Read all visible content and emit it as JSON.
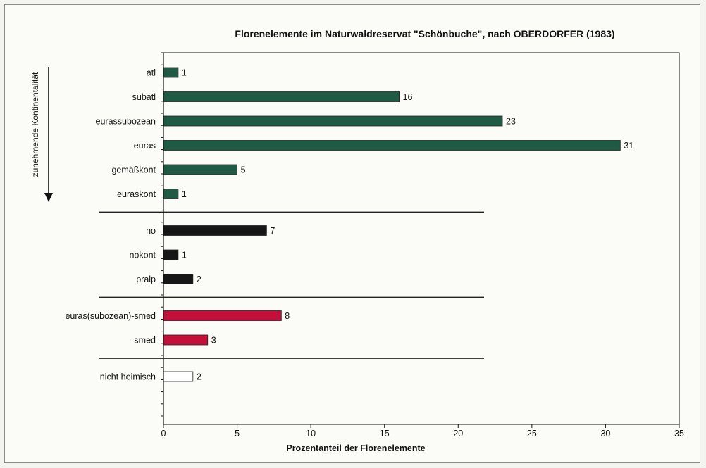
{
  "chart_data": {
    "type": "bar",
    "orientation": "horizontal",
    "title": "Florenelemente im Naturwaldreservat \"Schönbuche\", nach OBERDORFER (1983)",
    "xlabel": "Prozentanteil der Florenelemente",
    "ylabel": "zunehmende Kontinentalität",
    "xlim": [
      0,
      35
    ],
    "xticks": [
      0,
      5,
      10,
      15,
      20,
      25,
      30,
      35
    ],
    "grid": false,
    "groups": [
      {
        "color": "#1f5a45",
        "bars": [
          {
            "category": "atl",
            "value": 1
          },
          {
            "category": "subatl",
            "value": 16
          },
          {
            "category": "eurassubozean",
            "value": 23
          },
          {
            "category": "euras",
            "value": 31
          },
          {
            "category": "gemäßkont",
            "value": 5
          },
          {
            "category": "euraskont",
            "value": 1
          }
        ]
      },
      {
        "color": "#161616",
        "bars": [
          {
            "category": "no",
            "value": 7
          },
          {
            "category": "nokont",
            "value": 1
          },
          {
            "category": "pralp",
            "value": 2
          }
        ]
      },
      {
        "color": "#c2103a",
        "bars": [
          {
            "category": "euras(subozean)-smed",
            "value": 8
          },
          {
            "category": "smed",
            "value": 3
          }
        ]
      },
      {
        "color": "#ffffff",
        "bars": [
          {
            "category": "nicht heimisch",
            "value": 2
          }
        ]
      }
    ]
  }
}
